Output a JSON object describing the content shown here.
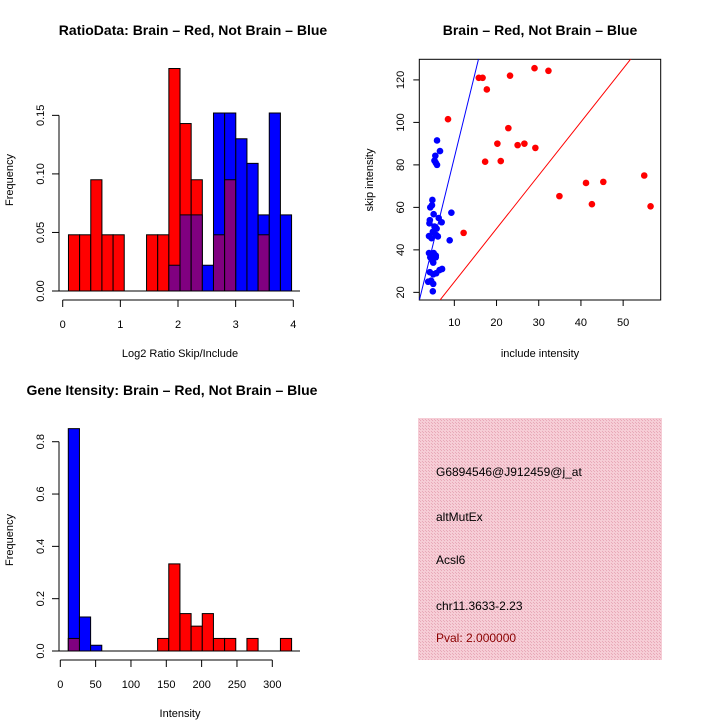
{
  "colors": {
    "red": "#ff0000",
    "blue": "#0000ff",
    "overlap": "#800080",
    "panel": "#f3c4ce",
    "pval": "#8b0000"
  },
  "chart_data": [
    {
      "type": "bar",
      "title": "RatioData: Brain – Red, Not Brain – Blue",
      "xlabel": "Log2 Ratio Skip/Include",
      "ylabel": "Frequency",
      "xlim": [
        0,
        4
      ],
      "ylim": [
        0,
        0.19
      ],
      "xticks": [
        0,
        1,
        2,
        3,
        4
      ],
      "yticks": [
        "0.00",
        "0.05",
        "0.10",
        "0.15"
      ],
      "bin_start": 0.1,
      "bin_width": 0.1935,
      "series": [
        {
          "name": "Brain",
          "color": "red",
          "values": [
            0.048,
            0.048,
            0.095,
            0.048,
            0.048,
            0,
            0,
            0.048,
            0.048,
            0.19,
            0.143,
            0.095,
            0,
            0.048,
            0.095,
            0,
            0,
            0.048,
            0,
            0
          ]
        },
        {
          "name": "Not Brain",
          "color": "blue",
          "values": [
            0,
            0,
            0,
            0,
            0,
            0,
            0,
            0,
            0,
            0.022,
            0.065,
            0.065,
            0.022,
            0.152,
            0.152,
            0.13,
            0.109,
            0.065,
            0.152,
            0.065
          ]
        }
      ]
    },
    {
      "type": "scatter",
      "title": "Brain – Red, Not Brain – Blue",
      "xlabel": "include intensity",
      "ylabel": "skip intensity",
      "xlim": [
        1.7,
        58.9
      ],
      "ylim": [
        16.4,
        129.7
      ],
      "xticks": [
        10,
        20,
        30,
        40,
        50
      ],
      "yticks": [
        20,
        40,
        60,
        80,
        100,
        120
      ],
      "lines": [
        {
          "name": "blue-fit",
          "color": "blue",
          "intercept": 2.4,
          "slope": 8.1
        },
        {
          "name": "red-fit",
          "color": "red",
          "intercept": -0.2,
          "slope": 2.51
        }
      ],
      "series": [
        {
          "name": "Brain",
          "color": "red",
          "points": [
            [
              8.5,
              101.5
            ],
            [
              12.2,
              48
            ],
            [
              15.8,
              121
            ],
            [
              16.7,
              121
            ],
            [
              17.7,
              115.5
            ],
            [
              17.3,
              81.5
            ],
            [
              20.2,
              90
            ],
            [
              21,
              81.8
            ],
            [
              22.8,
              97.3
            ],
            [
              23.2,
              122
            ],
            [
              25,
              89.3
            ],
            [
              26.6,
              90
            ],
            [
              29.2,
              88
            ],
            [
              29,
              125.5
            ],
            [
              32.3,
              124.3
            ],
            [
              34.9,
              65.3
            ],
            [
              41.2,
              71.5
            ],
            [
              42.6,
              61.5
            ],
            [
              45.3,
              72
            ],
            [
              55,
              75
            ],
            [
              56.5,
              60.5
            ]
          ]
        },
        {
          "name": "Not Brain",
          "color": "blue",
          "points": [
            [
              5.9,
              91.5
            ],
            [
              6.6,
              86.5
            ],
            [
              5.5,
              84.3
            ],
            [
              5.3,
              82
            ],
            [
              5.6,
              81
            ],
            [
              5.9,
              80
            ],
            [
              4.8,
              63.5
            ],
            [
              4.7,
              61
            ],
            [
              4.3,
              60
            ],
            [
              5.1,
              56.8
            ],
            [
              6.3,
              55
            ],
            [
              7,
              53
            ],
            [
              4.2,
              54
            ],
            [
              4.1,
              52.5
            ],
            [
              5.3,
              51
            ],
            [
              5.8,
              50
            ],
            [
              4.9,
              48.5
            ],
            [
              4,
              46.5
            ],
            [
              4.6,
              45.5
            ],
            [
              5.7,
              47
            ],
            [
              6.1,
              46.3
            ],
            [
              9.3,
              57.5
            ],
            [
              8.9,
              44.5
            ],
            [
              4,
              38.5
            ],
            [
              5.1,
              38.5
            ],
            [
              4.3,
              36.5
            ],
            [
              5.6,
              37.3
            ],
            [
              4.8,
              35
            ],
            [
              5,
              34
            ],
            [
              5.6,
              36.5
            ],
            [
              4.2,
              29.5
            ],
            [
              5,
              28.5
            ],
            [
              6.5,
              30.5
            ],
            [
              7.1,
              31
            ],
            [
              5.7,
              29
            ],
            [
              3.8,
              25
            ],
            [
              4.5,
              25.5
            ],
            [
              5,
              24
            ],
            [
              4.9,
              20.5
            ]
          ]
        }
      ]
    },
    {
      "type": "bar",
      "title": "Gene Itensity: Brain – Red, Not Brain – Blue",
      "xlabel": "Intensity",
      "ylabel": "Frequency",
      "xlim": [
        0,
        300
      ],
      "ylim": [
        0,
        0.85
      ],
      "xticks": [
        0,
        50,
        100,
        150,
        200,
        250,
        300
      ],
      "yticks": [
        "0.0",
        "0.2",
        "0.4",
        "0.6",
        "0.8"
      ],
      "bin_start": 11.3,
      "bin_width": 15.8,
      "series": [
        {
          "name": "Brain",
          "color": "red",
          "values": [
            0.048,
            0,
            0,
            0,
            0,
            0,
            0,
            0,
            0.048,
            0.333,
            0.143,
            0.095,
            0.143,
            0.048,
            0.048,
            0,
            0.048,
            0,
            0,
            0.048
          ]
        },
        {
          "name": "Not Brain",
          "color": "blue",
          "values": [
            0.85,
            0.13,
            0.022,
            0,
            0,
            0,
            0,
            0,
            0,
            0,
            0,
            0,
            0,
            0,
            0,
            0,
            0,
            0,
            0,
            0
          ]
        }
      ]
    }
  ],
  "info_panel": {
    "probe_id": "G6894546@J912459@j_at",
    "event_type": "altMutEx",
    "gene": "Acsl6",
    "location": "chr11.3633-2.23",
    "pval": "Pval: 2.000000"
  }
}
